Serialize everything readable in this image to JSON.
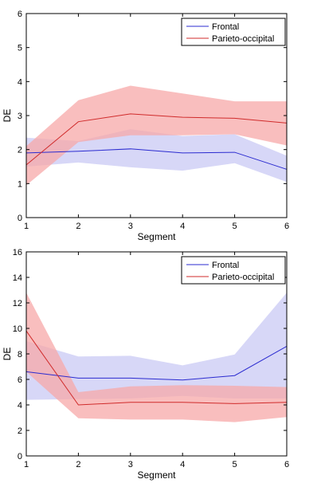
{
  "chart_data": [
    {
      "type": "line",
      "xlabel": "Segment",
      "ylabel": "DE",
      "x": [
        1,
        2,
        3,
        4,
        5,
        6
      ],
      "xlim": [
        1,
        6
      ],
      "ylim": [
        0,
        6
      ],
      "xticks": [
        "1",
        "2",
        "3",
        "4",
        "5",
        "6"
      ],
      "yticks": [
        "0",
        "1",
        "2",
        "3",
        "4",
        "5",
        "6"
      ],
      "grid": false,
      "legend_position": "top-right",
      "series": [
        {
          "name": "Frontal",
          "color": "#2b2bd0",
          "band_color": "#c9caf4",
          "values": [
            1.9,
            1.95,
            2.02,
            1.9,
            1.92,
            1.42
          ],
          "upper": [
            2.35,
            2.25,
            2.6,
            2.4,
            2.45,
            1.82
          ],
          "lower": [
            1.5,
            1.62,
            1.48,
            1.38,
            1.6,
            1.05
          ]
        },
        {
          "name": "Parieto-occipital",
          "color": "#d02b2b",
          "band_color": "#f7a8a8",
          "values": [
            1.55,
            2.82,
            3.05,
            2.95,
            2.92,
            2.78
          ],
          "upper": [
            2.1,
            3.45,
            3.88,
            3.65,
            3.42,
            3.42
          ],
          "lower": [
            0.95,
            2.22,
            2.42,
            2.42,
            2.45,
            2.12
          ]
        }
      ]
    },
    {
      "type": "line",
      "xlabel": "Segment",
      "ylabel": "DE",
      "x": [
        1,
        2,
        3,
        4,
        5,
        6
      ],
      "xlim": [
        1,
        6
      ],
      "ylim": [
        0,
        16
      ],
      "xticks": [
        "1",
        "2",
        "3",
        "4",
        "5",
        "6"
      ],
      "yticks": [
        "0",
        "2",
        "4",
        "6",
        "8",
        "10",
        "12",
        "14",
        "16"
      ],
      "grid": false,
      "legend_position": "top-right",
      "series": [
        {
          "name": "Frontal",
          "color": "#2b2bd0",
          "band_color": "#c9caf4",
          "values": [
            6.6,
            6.1,
            6.1,
            5.95,
            6.3,
            8.6
          ],
          "upper": [
            9.0,
            7.8,
            7.85,
            7.1,
            7.95,
            12.8
          ],
          "lower": [
            4.4,
            4.45,
            4.5,
            4.7,
            4.5,
            4.5
          ]
        },
        {
          "name": "Parieto-occipital",
          "color": "#d02b2b",
          "band_color": "#f7a8a8",
          "values": [
            9.8,
            4.0,
            4.2,
            4.2,
            4.1,
            4.2
          ],
          "upper": [
            12.8,
            5.0,
            5.45,
            5.55,
            5.5,
            5.4
          ],
          "lower": [
            6.6,
            2.95,
            2.85,
            2.85,
            2.65,
            3.05
          ]
        }
      ]
    }
  ]
}
